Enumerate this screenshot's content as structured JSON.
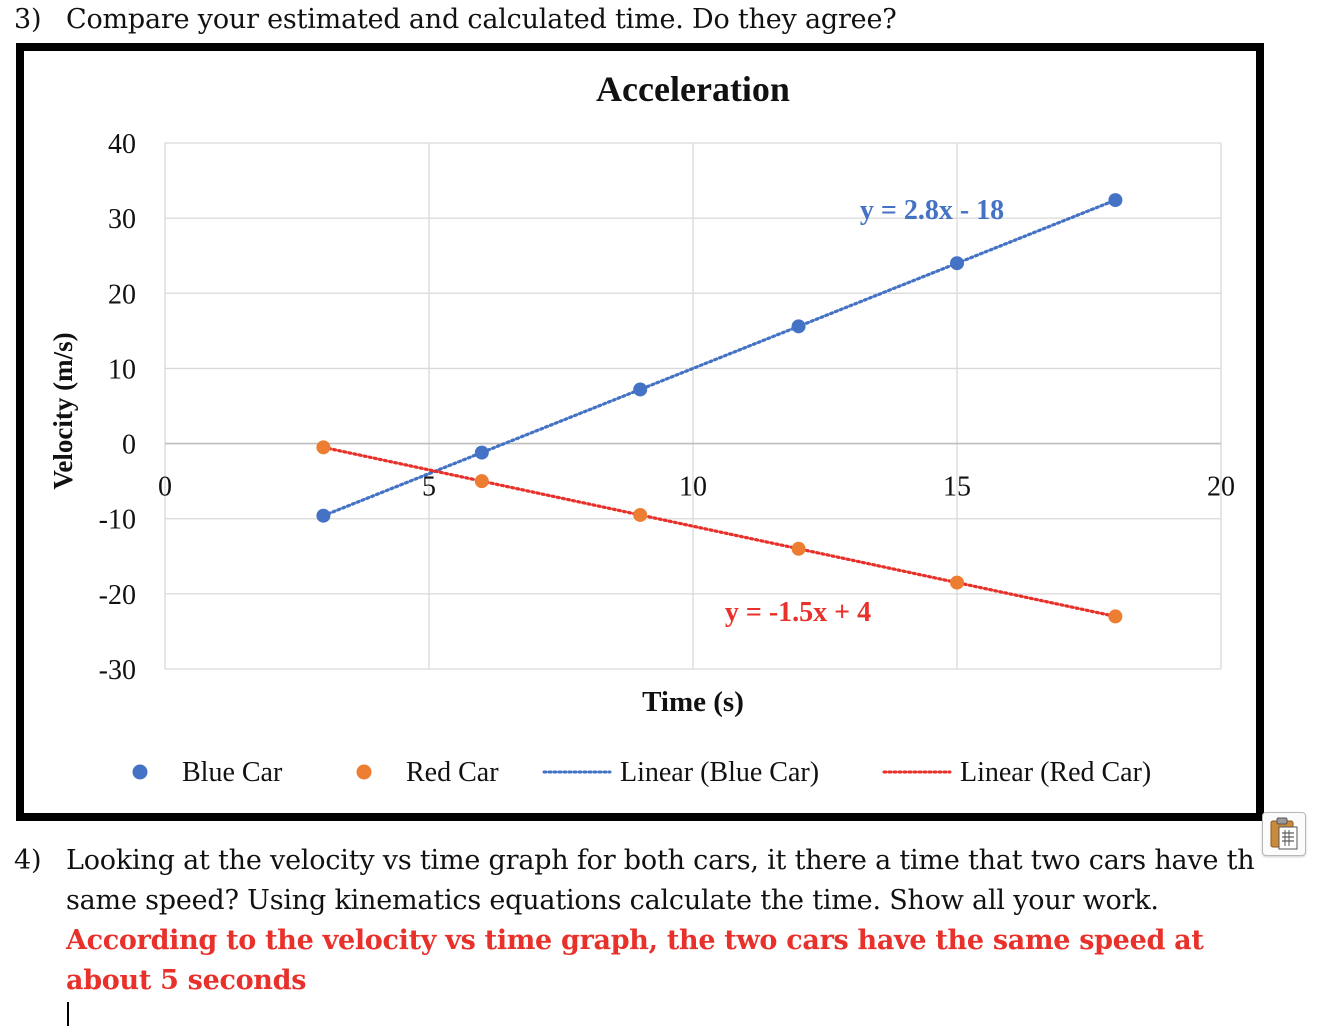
{
  "questions": {
    "q3": {
      "number": "3)",
      "text": "Compare your estimated and calculated time. Do they agree?"
    },
    "q4": {
      "number": "4)",
      "line1": "Looking at the velocity vs time graph for both cars, it there a time that two cars have th",
      "line2": "same speed? Using kinematics equations calculate the time. Show all your work."
    },
    "answer": {
      "line1": "According to the velocity vs time graph, the two cars have the same speed at",
      "line2": "about 5 seconds"
    }
  },
  "icons": {
    "paste": "clipboard-paste-icon"
  },
  "colors": {
    "blue": "#4472c4",
    "orange": "#ed7d31",
    "red_trend": "#e8312a",
    "answer": "#e8312a"
  },
  "chart_data": {
    "type": "scatter",
    "title": "Acceleration",
    "xlabel": "Time (s)",
    "ylabel": "Velocity (m/s)",
    "xlim": [
      0,
      20
    ],
    "ylim": [
      -30,
      40
    ],
    "x_ticks": [
      "0",
      "5",
      "10",
      "15",
      "20"
    ],
    "y_ticks": [
      "40",
      "30",
      "20",
      "10",
      "0",
      "-10",
      "-20",
      "-30"
    ],
    "grid": true,
    "legend_position": "bottom",
    "series": [
      {
        "name": "Blue Car",
        "color": "#4472c4",
        "x": [
          3,
          6,
          9,
          12,
          15,
          18
        ],
        "y": [
          -9.6,
          -1.2,
          7.2,
          15.6,
          24,
          32.4
        ]
      },
      {
        "name": "Red Car",
        "color": "#ed7d31",
        "x": [
          3,
          6,
          9,
          12,
          15,
          18
        ],
        "y": [
          -0.5,
          -5,
          -9.5,
          -14,
          -18.5,
          -23
        ]
      }
    ],
    "trendlines": [
      {
        "name": "Linear (Blue Car)",
        "color": "#4472c4",
        "slope": 2.8,
        "intercept": -18,
        "equation": "y = 2.8x - 18",
        "x_range": [
          3,
          18
        ]
      },
      {
        "name": "Linear (Red Car)",
        "color": "#e8312a",
        "slope": -1.5,
        "intercept": 4,
        "equation": "y = -1.5x + 4",
        "x_range": [
          3,
          18
        ]
      }
    ]
  }
}
